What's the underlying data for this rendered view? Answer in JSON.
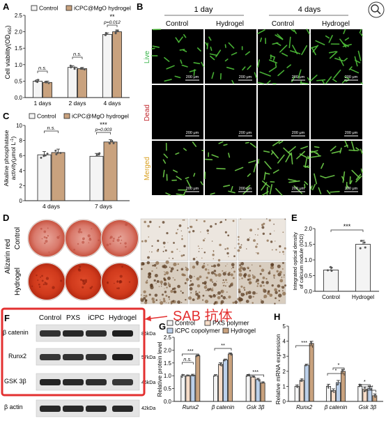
{
  "panels": {
    "A": {
      "letter": "A",
      "ylabel": "Cell viability(OD",
      "ylabel_sub": "450",
      "ylabel_end": ")",
      "legend": [
        "Control",
        "iCPC@MgO hydrogel"
      ],
      "annotations": [
        "n.s.",
        "n.s.",
        "**",
        "p=0.012"
      ]
    },
    "B": {
      "letter": "B",
      "day_headers": [
        "1 day",
        "4 days"
      ],
      "col_headers": [
        "Control",
        "Hydrogel",
        "Control",
        "Hydrogel"
      ],
      "row_labels": [
        "Live",
        "Dead",
        "Merged"
      ],
      "scale": "200 μm"
    },
    "C": {
      "letter": "C",
      "ylabel1": "Alkaline phosphatase",
      "ylabel2": "activity(μmol L",
      "ylabel_sup": "-1",
      "ylabel_end": ")",
      "legend": [
        "Control",
        "iCPC@MgO hydrogel"
      ],
      "annotations": [
        "n.s.",
        "***",
        "p=0.003"
      ]
    },
    "D": {
      "letter": "D",
      "stain": "Alizarin red",
      "rows": [
        "Control",
        "Hydrogel"
      ]
    },
    "E": {
      "letter": "E",
      "ylabel1": "Integrated optical density",
      "ylabel2": "of calcium nodule (IOD)",
      "sig": "***"
    },
    "F": {
      "letter": "F",
      "lanes": [
        "Control",
        "PXS",
        "iCPC",
        "Hydrogel"
      ],
      "proteins": [
        "β catenin",
        "Runx2",
        "GSK 3β",
        "β actin"
      ],
      "sizes": [
        "86kDa",
        "57kDa",
        "46kDa",
        "42kDa"
      ],
      "callout": "SAB 抗体"
    },
    "G": {
      "letter": "G",
      "ylabel": "Relative protein level",
      "legend": [
        "Control",
        "PXS polymer",
        "iCPC copolymer",
        "Hydrogel"
      ],
      "annotations": [
        "n.s.",
        "***",
        "**",
        "***"
      ]
    },
    "H": {
      "letter": "H",
      "ylabel": "Relative mRNA expression",
      "annotations": [
        "***",
        "*",
        "*",
        "*",
        "***"
      ]
    }
  },
  "colors": {
    "control_fill": "#f4f4f4",
    "hydrogel_fill": "#c9a27e",
    "pxs_fill": "#f6dcc8",
    "icpc_fill": "#bcd0ea",
    "callout_red": "#e33030",
    "live_label": "#39b54a",
    "dead_label": "#c1272d",
    "merged_label": "#d9a021"
  },
  "chart_data": [
    {
      "panel": "A",
      "type": "bar",
      "categories": [
        "1 days",
        "2 days",
        "4 days"
      ],
      "series": [
        {
          "name": "Control",
          "values": [
            0.5,
            0.92,
            1.92
          ]
        },
        {
          "name": "iCPC@MgO hydrogel",
          "values": [
            0.46,
            0.88,
            2.0
          ]
        }
      ],
      "ylim": [
        0,
        2.5
      ],
      "yticks": [
        "0.0",
        "0.5",
        "1.0",
        "1.5",
        "2.0",
        "2.5"
      ]
    },
    {
      "panel": "C",
      "type": "bar",
      "categories": [
        "4 days",
        "7 days"
      ],
      "series": [
        {
          "name": "Control",
          "values": [
            6.1,
            5.9
          ]
        },
        {
          "name": "iCPC@MgO hydrogel",
          "values": [
            6.4,
            7.8
          ]
        }
      ],
      "ylim": [
        0,
        10
      ],
      "yticks": [
        "0",
        "2",
        "4",
        "6",
        "8",
        "10"
      ]
    },
    {
      "panel": "E",
      "type": "bar",
      "categories": [
        "Control",
        "Hydrogel"
      ],
      "values": [
        0.68,
        1.5
      ],
      "ylim": [
        0,
        2.0
      ],
      "yticks": [
        "0.0",
        "0.5",
        "1.0",
        "1.5",
        "2.0"
      ]
    },
    {
      "panel": "G",
      "type": "bar",
      "categories": [
        "Runx2",
        "β catenin",
        "Gsk 3β"
      ],
      "series": [
        {
          "name": "Control",
          "values": [
            1.0,
            1.0,
            1.0
          ]
        },
        {
          "name": "PXS polymer",
          "values": [
            1.0,
            1.45,
            0.95
          ]
        },
        {
          "name": "iCPC copolymer",
          "values": [
            1.02,
            1.62,
            0.85
          ]
        },
        {
          "name": "Hydrogel",
          "values": [
            1.78,
            1.85,
            0.72
          ]
        }
      ],
      "ylim": [
        0,
        2.5
      ],
      "yticks": [
        "0.0",
        "0.5",
        "1.0",
        "1.5",
        "2.0",
        "2.5"
      ]
    },
    {
      "panel": "H",
      "type": "bar",
      "categories": [
        "Runx2",
        "β catenin",
        "Gsk 3β"
      ],
      "series": [
        {
          "name": "Control",
          "values": [
            1.0,
            1.0,
            1.0
          ]
        },
        {
          "name": "PXS polymer",
          "values": [
            1.4,
            0.72,
            0.82
          ]
        },
        {
          "name": "iCPC copolymer",
          "values": [
            2.4,
            1.25,
            0.88
          ]
        },
        {
          "name": "Hydrogel",
          "values": [
            3.85,
            2.0,
            0.38
          ]
        }
      ],
      "ylim": [
        0,
        5
      ],
      "yticks": [
        "0",
        "1",
        "2",
        "3",
        "4",
        "5"
      ]
    }
  ]
}
